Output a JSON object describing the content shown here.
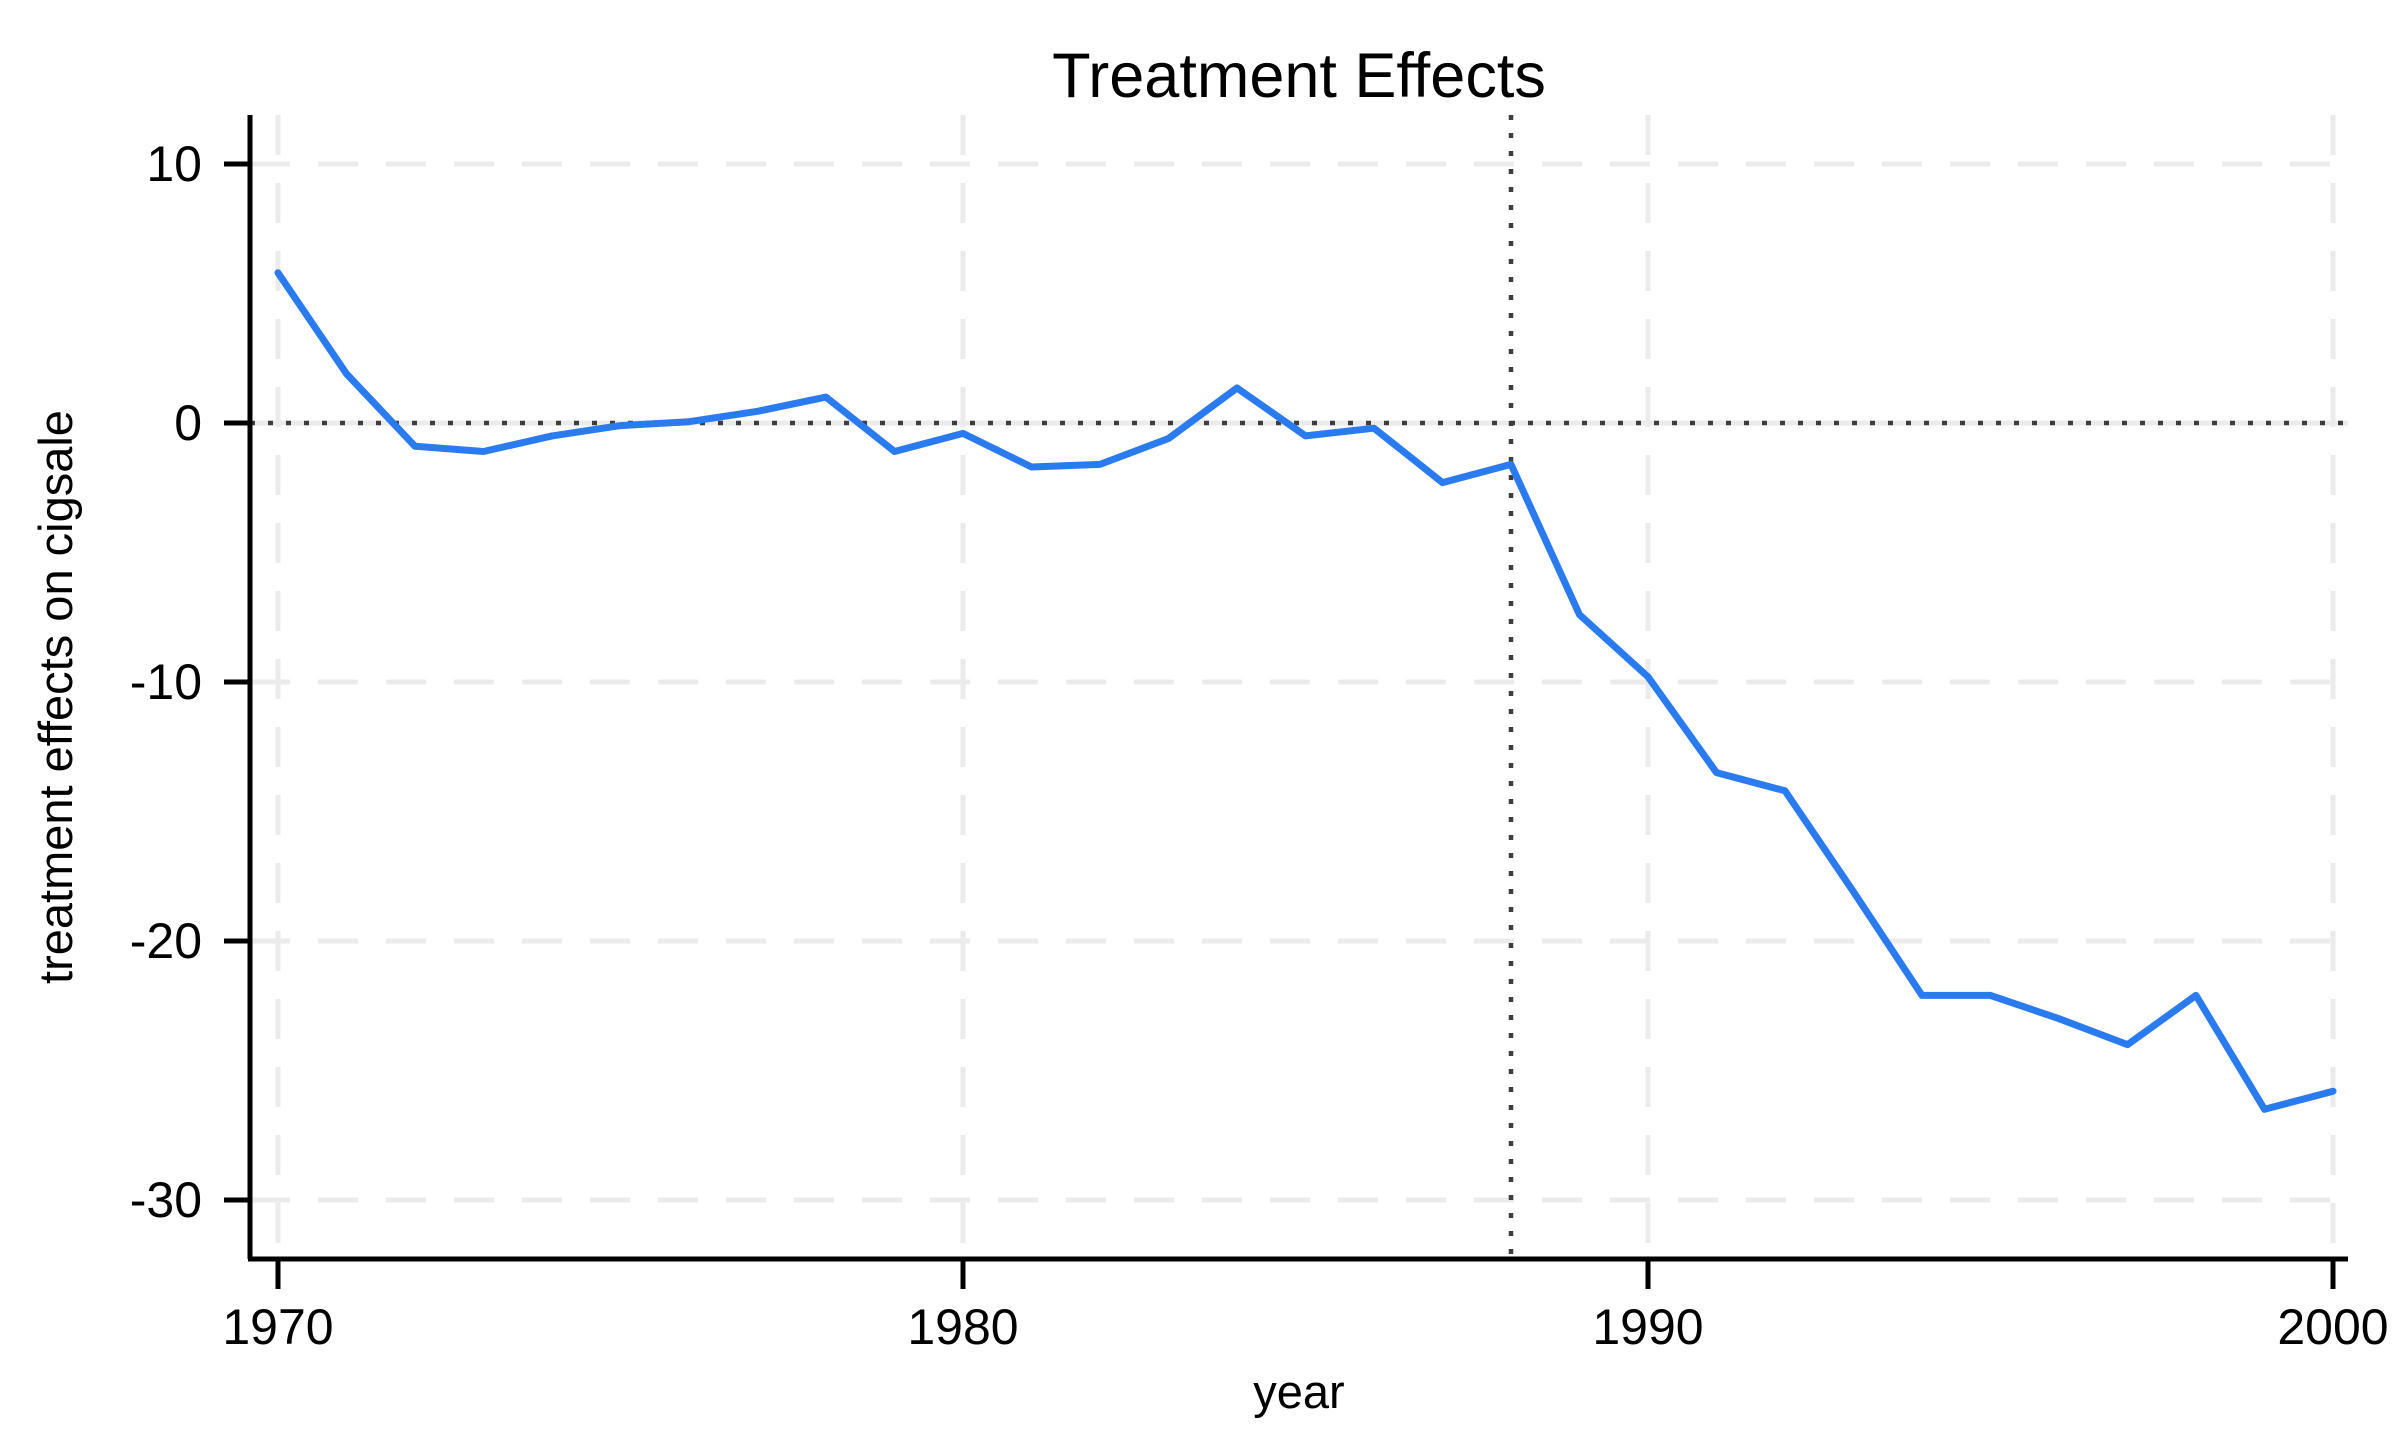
{
  "chart_data": {
    "type": "line",
    "title": "Treatment Effects",
    "xlabel": "year",
    "ylabel": "treatment effects on cigsale",
    "x": [
      1970,
      1971,
      1972,
      1973,
      1974,
      1975,
      1976,
      1977,
      1978,
      1979,
      1980,
      1981,
      1982,
      1983,
      1984,
      1985,
      1986,
      1987,
      1988,
      1989,
      1990,
      1991,
      1992,
      1993,
      1994,
      1995,
      1996,
      1997,
      1998,
      1999,
      2000
    ],
    "series": [
      {
        "name": "treatment effect on cigsale",
        "color": "#2b7bf0",
        "values": [
          5.8,
          1.9,
          -0.9,
          -1.1,
          -0.5,
          -0.1,
          0.05,
          0.45,
          1.0,
          -1.1,
          -0.4,
          -1.7,
          -1.6,
          -0.6,
          1.35,
          -0.5,
          -0.2,
          -2.3,
          -1.6,
          -7.4,
          -9.8,
          -13.5,
          -14.2,
          -18.1,
          -22.1,
          -22.1,
          -23.0,
          -24.0,
          -22.1,
          -26.5,
          -25.8
        ]
      }
    ],
    "xticks": [
      1970,
      1980,
      1990,
      2000
    ],
    "yticks": [
      10,
      0,
      -10,
      -20,
      -30
    ],
    "xlim": [
      1969.6,
      2000.2
    ],
    "ylim": [
      -32,
      12
    ],
    "grid": "dashed light-gray gridlines at decade years and every 10 units",
    "reference_lines": [
      {
        "axis": "y",
        "value": 0,
        "style": "dotted"
      },
      {
        "axis": "x",
        "value": 1988,
        "style": "dotted"
      }
    ],
    "legend": "none"
  },
  "colors": {
    "series_line": "#2b7bf0",
    "gridline": "#ebebeb",
    "reference_dotted": "#3d3d3d",
    "axis": "#000000",
    "background": "#ffffff"
  }
}
